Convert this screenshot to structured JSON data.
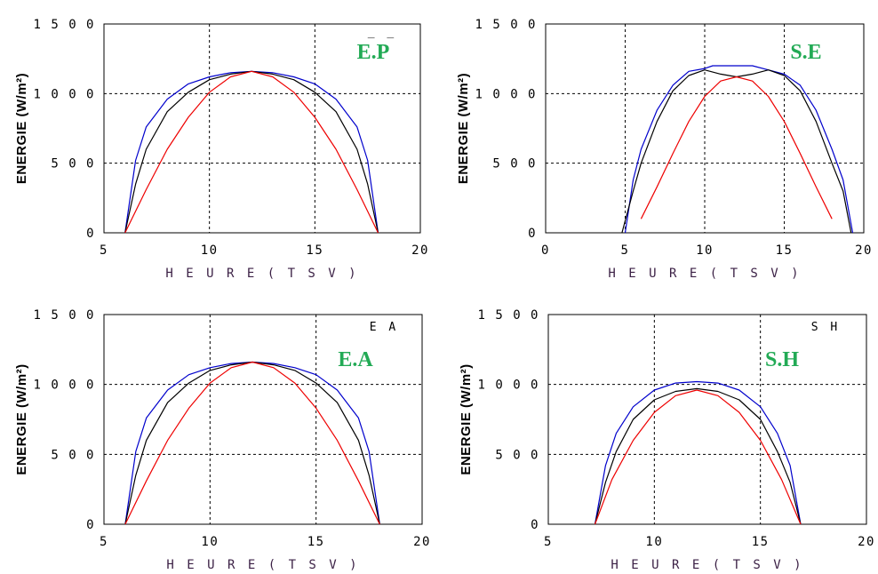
{
  "chart_data": [
    {
      "type": "line",
      "title": "E.P",
      "corner_marker": "_ _",
      "xlabel": "HEURE (TSV)",
      "ylabel": "ENERGIE (W/m²)",
      "xlim": [
        5,
        20
      ],
      "ylim": [
        0,
        1500
      ],
      "xticks": [
        5,
        10,
        15,
        20
      ],
      "yticks": [
        0,
        500,
        1000,
        1500
      ],
      "grid": true,
      "title_color": "#22aa55",
      "series": [
        {
          "color": "#0000cc",
          "x": [
            6,
            6.5,
            7,
            8,
            9,
            10,
            11,
            12,
            13,
            14,
            15,
            16,
            17,
            17.5,
            18
          ],
          "y": [
            0,
            520,
            760,
            960,
            1070,
            1120,
            1150,
            1160,
            1150,
            1120,
            1070,
            960,
            760,
            520,
            0
          ]
        },
        {
          "color": "#000000",
          "x": [
            6,
            6.5,
            7,
            8,
            9,
            10,
            11,
            12,
            13,
            14,
            15,
            16,
            17,
            17.5,
            18
          ],
          "y": [
            0,
            350,
            600,
            870,
            1010,
            1100,
            1140,
            1160,
            1140,
            1100,
            1010,
            870,
            600,
            350,
            0
          ]
        },
        {
          "color": "#ee0000",
          "x": [
            6,
            7,
            8,
            9,
            10,
            11,
            12,
            13,
            14,
            15,
            16,
            17,
            18
          ],
          "y": [
            0,
            310,
            600,
            830,
            1010,
            1120,
            1160,
            1120,
            1010,
            830,
            600,
            310,
            0
          ]
        }
      ]
    },
    {
      "type": "line",
      "title": "S.E",
      "corner_marker": "",
      "xlabel": "HEURE (TSV)",
      "ylabel": "ENERGIE (W/m²)",
      "xlim": [
        0,
        20
      ],
      "ylim": [
        0,
        1500
      ],
      "xticks": [
        0,
        5,
        10,
        15,
        20
      ],
      "yticks": [
        0,
        500,
        1000,
        1500
      ],
      "grid": true,
      "title_color": "#22aa55",
      "series": [
        {
          "color": "#0000cc",
          "x": [
            5,
            5.5,
            6,
            7,
            8,
            9,
            10,
            10.5,
            13,
            14,
            15,
            16,
            17,
            18,
            18.7,
            19.3
          ],
          "y": [
            0,
            380,
            600,
            880,
            1060,
            1160,
            1180,
            1200,
            1200,
            1170,
            1140,
            1060,
            880,
            600,
            380,
            0
          ]
        },
        {
          "color": "#000000",
          "x": [
            4.8,
            5.5,
            6,
            7,
            8,
            9,
            10,
            11,
            12,
            13,
            14,
            15,
            16,
            17,
            18,
            18.7,
            19.2
          ],
          "y": [
            0,
            300,
            500,
            800,
            1020,
            1130,
            1170,
            1140,
            1120,
            1140,
            1170,
            1130,
            1020,
            800,
            500,
            300,
            0
          ]
        },
        {
          "color": "#ee0000",
          "x": [
            6,
            7,
            8,
            9,
            10,
            11,
            12,
            13,
            14,
            15,
            16,
            17,
            18
          ],
          "y": [
            100,
            330,
            570,
            800,
            980,
            1090,
            1120,
            1090,
            980,
            800,
            570,
            330,
            100
          ]
        }
      ]
    },
    {
      "type": "line",
      "title": "E.A",
      "corner_marker": "E A",
      "xlabel": "HEURE (TSV)",
      "ylabel": "ENERGIE (W/m²)",
      "xlim": [
        5,
        20
      ],
      "ylim": [
        0,
        1500
      ],
      "xticks": [
        5,
        10,
        15,
        20
      ],
      "yticks": [
        0,
        500,
        1000,
        1500
      ],
      "grid": true,
      "title_color": "#22aa55",
      "series": [
        {
          "color": "#0000cc",
          "x": [
            6,
            6.5,
            7,
            8,
            9,
            10,
            11,
            12,
            13,
            14,
            15,
            16,
            17,
            17.5,
            18
          ],
          "y": [
            0,
            520,
            760,
            960,
            1070,
            1120,
            1150,
            1160,
            1150,
            1120,
            1070,
            960,
            760,
            520,
            0
          ]
        },
        {
          "color": "#000000",
          "x": [
            6,
            6.5,
            7,
            8,
            9,
            10,
            11,
            12,
            13,
            14,
            15,
            16,
            17,
            17.5,
            18
          ],
          "y": [
            0,
            350,
            600,
            870,
            1010,
            1100,
            1140,
            1160,
            1140,
            1100,
            1010,
            870,
            600,
            350,
            0
          ]
        },
        {
          "color": "#ee0000",
          "x": [
            6,
            7,
            8,
            9,
            10,
            11,
            12,
            13,
            14,
            15,
            16,
            17,
            18
          ],
          "y": [
            0,
            310,
            600,
            830,
            1010,
            1120,
            1160,
            1120,
            1010,
            830,
            600,
            310,
            0
          ]
        }
      ]
    },
    {
      "type": "line",
      "title": "S.H",
      "corner_marker": "S H",
      "xlabel": "HEURE (TSV)",
      "ylabel": "ENERGIE (W/m²)",
      "xlim": [
        5,
        20
      ],
      "ylim": [
        0,
        1500
      ],
      "xticks": [
        5,
        10,
        15,
        20
      ],
      "yticks": [
        0,
        500,
        1000,
        1500
      ],
      "grid": true,
      "title_color": "#22aa55",
      "series": [
        {
          "color": "#0000cc",
          "x": [
            7.2,
            7.7,
            8.2,
            9,
            10,
            11,
            12,
            13,
            14,
            15,
            15.8,
            16.4,
            16.9
          ],
          "y": [
            0,
            420,
            650,
            840,
            960,
            1010,
            1020,
            1010,
            960,
            840,
            650,
            420,
            0
          ]
        },
        {
          "color": "#000000",
          "x": [
            7.2,
            7.7,
            8.2,
            9,
            10,
            11,
            12,
            13,
            14,
            15,
            15.8,
            16.4,
            16.9
          ],
          "y": [
            0,
            300,
            520,
            750,
            890,
            950,
            970,
            950,
            890,
            750,
            520,
            300,
            0
          ]
        },
        {
          "color": "#ee0000",
          "x": [
            7.2,
            8,
            9,
            10,
            11,
            12,
            13,
            14,
            15,
            16,
            16.9
          ],
          "y": [
            0,
            320,
            600,
            800,
            920,
            960,
            920,
            800,
            600,
            320,
            0
          ]
        }
      ]
    }
  ]
}
